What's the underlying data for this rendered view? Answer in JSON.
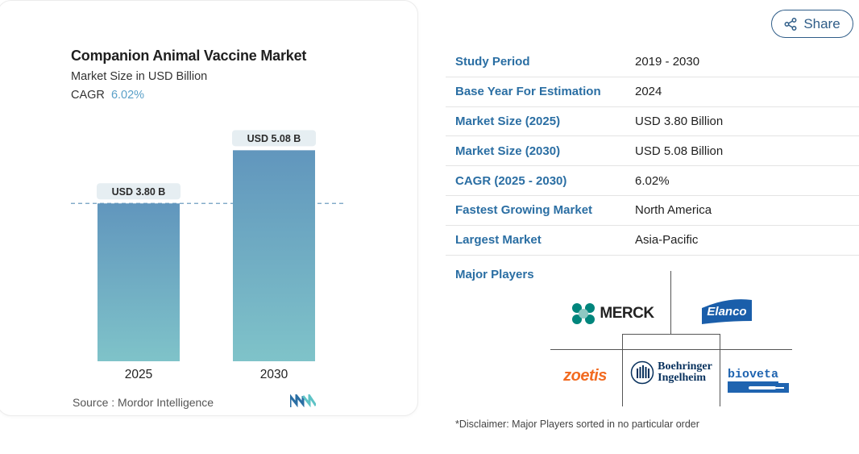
{
  "chart_data": {
    "type": "bar",
    "title": "Companion Animal Vaccine Market",
    "subtitle": "Market Size in USD Billion",
    "cagr_label": "CAGR",
    "cagr_value": "6.02%",
    "categories": [
      "2025",
      "2030"
    ],
    "values": [
      3.8,
      5.08
    ],
    "data_labels": [
      "USD 3.80 B",
      "USD 5.08 B"
    ],
    "reference_line_value": 3.8,
    "ylim": [
      0,
      5.3
    ],
    "grid": false,
    "colors": {
      "bar_top": "#6196bd",
      "bar_bottom": "#7fc3c9",
      "label_bg": "#e6eef2",
      "ref_line": "#6e9fc0"
    }
  },
  "source": {
    "text": "Source :  Mordor Intelligence"
  },
  "share": {
    "label": "Share",
    "icon": "share-icon"
  },
  "info_table": [
    {
      "label": "Study Period",
      "value": "2019 - 2030"
    },
    {
      "label": "Base Year For Estimation",
      "value": "2024"
    },
    {
      "label": "Market Size (2025)",
      "value": "USD 3.80 Billion"
    },
    {
      "label": "Market Size (2030)",
      "value": "USD 5.08 Billion"
    },
    {
      "label": "CAGR (2025 - 2030)",
      "value": "6.02%"
    },
    {
      "label": "Fastest Growing Market",
      "value": "North America"
    },
    {
      "label": "Largest Market",
      "value": "Asia-Pacific"
    }
  ],
  "major_players": {
    "title": "Major Players",
    "players": [
      {
        "name": "MERCK",
        "icon": "merck-logo"
      },
      {
        "name": "Elanco",
        "icon": "elanco-logo"
      },
      {
        "name": "zoetis",
        "icon": "zoetis-logo"
      },
      {
        "name_line1": "Boehringer",
        "name_line2": "Ingelheim",
        "icon": "boehringer-ingelheim-logo"
      },
      {
        "name": "bioveta",
        "icon": "bioveta-logo"
      }
    ]
  },
  "disclaimer": "*Disclaimer: Major Players sorted in no particular order",
  "colors": {
    "accent": "#2a6ea3",
    "merck": "#00857c",
    "zoetis": "#f26b21",
    "elanco": "#1a5eaa",
    "boehringer": "#08315d",
    "bioveta": "#1f64b0"
  }
}
